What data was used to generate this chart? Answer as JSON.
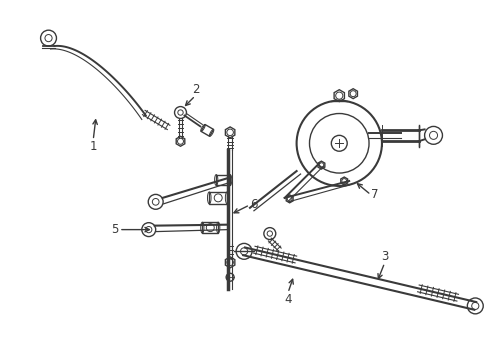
{
  "bg_color": "#ffffff",
  "lc": "#3a3a3a",
  "lw": 1.0,
  "figsize": [
    4.9,
    3.6
  ],
  "dpi": 100,
  "xlim": [
    0,
    490
  ],
  "ylim": [
    360,
    0
  ]
}
